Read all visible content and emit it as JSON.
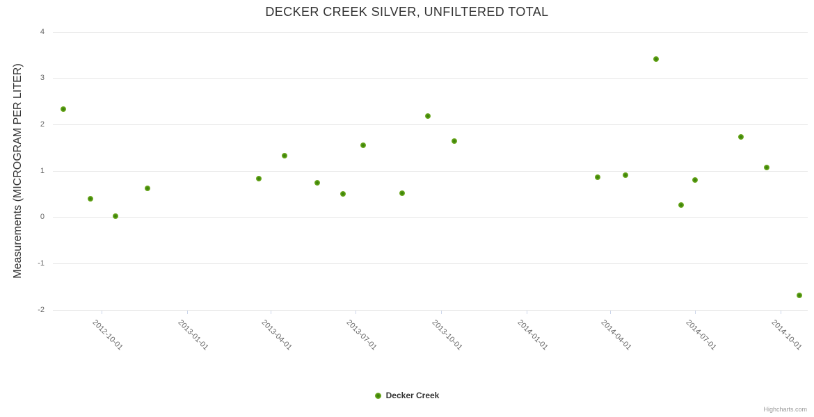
{
  "title": "DECKER CREEK SILVER, UNFILTERED TOTAL",
  "legend": {
    "series_label": "Decker Creek"
  },
  "credits": {
    "label": "Highcharts.com"
  },
  "colors": {
    "background": "#ffffff",
    "title": "#333333",
    "axis_title": "#333333",
    "tick_label": "#666666",
    "grid": "#e6e6e6",
    "axis_line": "#ccd6eb",
    "marker_outer": "#8cc63c",
    "marker_inner": "#2f7d08"
  },
  "chart_data": {
    "type": "scatter",
    "title": "DECKER CREEK SILVER, UNFILTERED TOTAL",
    "xlabel": "",
    "ylabel": "Measurements (MICROGRAM PER LITER)",
    "ylim": [
      -2,
      4
    ],
    "xlim": [
      "2012-08-10",
      "2014-10-30"
    ],
    "grid": true,
    "legend_position": "bottom",
    "yticks": [
      {
        "value": 4,
        "label": "4"
      },
      {
        "value": 3,
        "label": "3"
      },
      {
        "value": 2,
        "label": "2"
      },
      {
        "value": 1,
        "label": "1"
      },
      {
        "value": 0,
        "label": "0"
      },
      {
        "value": -1,
        "label": "-1"
      },
      {
        "value": -2,
        "label": "-2"
      }
    ],
    "xticks": [
      "2012-10-01",
      "2013-01-01",
      "2013-04-01",
      "2013-07-01",
      "2013-10-01",
      "2014-01-01",
      "2014-04-01",
      "2014-07-01",
      "2014-10-01"
    ],
    "series": [
      {
        "name": "Decker Creek",
        "points": [
          {
            "date": "2012-08-21",
            "value": 2.34
          },
          {
            "date": "2012-09-19",
            "value": 0.4
          },
          {
            "date": "2012-10-16",
            "value": 0.02
          },
          {
            "date": "2012-11-20",
            "value": 0.63
          },
          {
            "date": "2013-03-19",
            "value": 0.84
          },
          {
            "date": "2013-04-16",
            "value": 1.33
          },
          {
            "date": "2013-05-21",
            "value": 0.74
          },
          {
            "date": "2013-06-18",
            "value": 0.51
          },
          {
            "date": "2013-07-09",
            "value": 1.56
          },
          {
            "date": "2013-08-20",
            "value": 0.52
          },
          {
            "date": "2013-09-17",
            "value": 2.18
          },
          {
            "date": "2013-10-15",
            "value": 1.65
          },
          {
            "date": "2014-03-18",
            "value": 0.86
          },
          {
            "date": "2014-04-17",
            "value": 0.91
          },
          {
            "date": "2014-05-20",
            "value": 3.42
          },
          {
            "date": "2014-06-16",
            "value": 0.27
          },
          {
            "date": "2014-07-01",
            "value": 0.81
          },
          {
            "date": "2014-08-19",
            "value": 1.74
          },
          {
            "date": "2014-09-16",
            "value": 1.08
          },
          {
            "date": "2014-10-21",
            "value": -1.68
          }
        ]
      }
    ]
  }
}
